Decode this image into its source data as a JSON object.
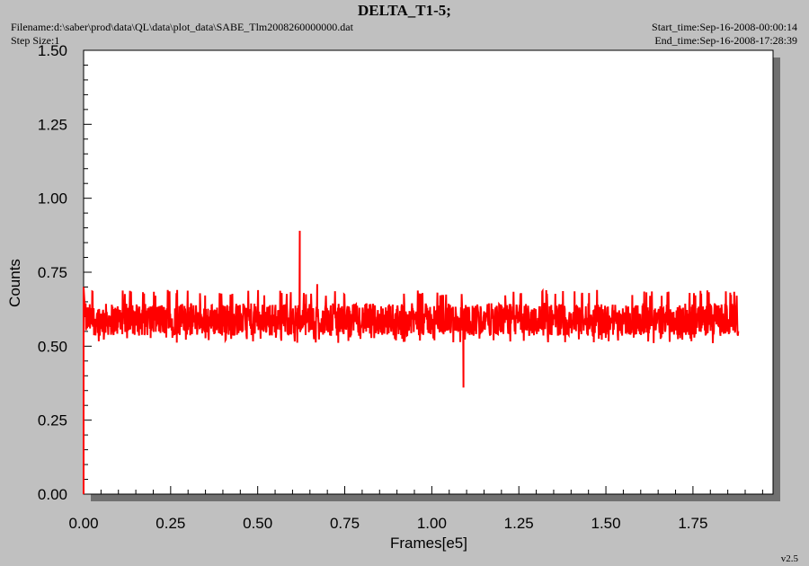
{
  "header": {
    "title": "DELTA_T1-5;",
    "filename": "Filename:d:\\saber\\prod\\data\\QL\\data\\plot_data\\SABE_Tlm2008260000000.dat",
    "step_size": "Step Size:1",
    "start_time": "Start_time:Sep-16-2008-00:00:14",
    "end_time": "End_time:Sep-16-2008-17:28:39"
  },
  "footer": {
    "version": "v2.5"
  },
  "colors": {
    "series": "#ff0000",
    "plot_background": "#ffffff",
    "page_background": "#c0c0c0",
    "shadow": "#707070"
  },
  "chart_data": {
    "type": "line",
    "title": "DELTA_T1-5;",
    "xlabel": "Frames[e5]",
    "ylabel": "Counts",
    "xlim": [
      0,
      1.98
    ],
    "ylim": [
      0,
      1.5
    ],
    "x_ticks": [
      "0.00",
      "0.25",
      "0.50",
      "0.75",
      "1.00",
      "1.25",
      "1.50",
      "1.75"
    ],
    "y_ticks": [
      "0.00",
      "0.25",
      "0.50",
      "0.75",
      "1.00",
      "1.25",
      "1.50"
    ],
    "grid": false,
    "series": [
      {
        "values_description": "noisy signal",
        "x_range": [
          0,
          1.88
        ],
        "baseline": 0.59,
        "noise_range": [
          0.51,
          0.69
        ],
        "initial_points": [
          [
            0,
            0
          ],
          [
            0,
            0.7
          ],
          [
            0.005,
            0.6
          ]
        ],
        "spikes": [
          [
            0.62,
            0.89
          ],
          [
            0.67,
            0.71
          ],
          [
            1.09,
            0.36
          ]
        ]
      }
    ]
  }
}
